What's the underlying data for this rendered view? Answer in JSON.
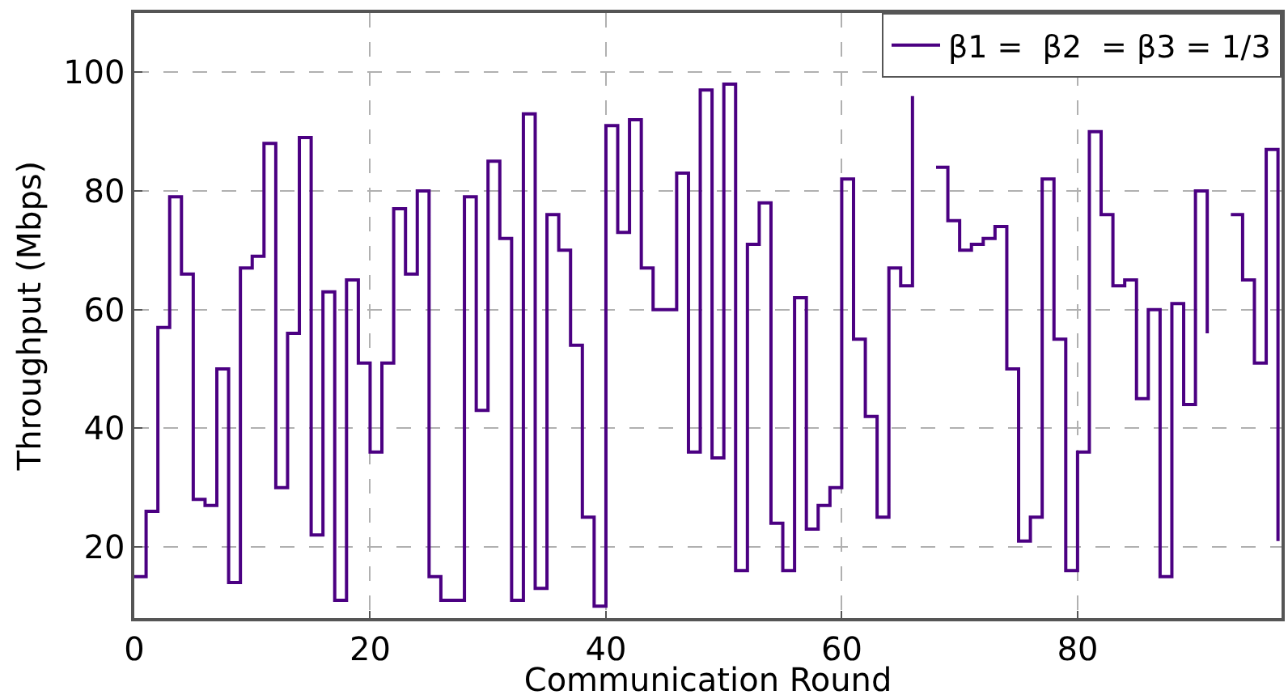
{
  "chart_data": {
    "type": "step",
    "xlabel": "Communication Round",
    "ylabel": "Throughput (Mbps)",
    "x": [
      0,
      1,
      2,
      3,
      4,
      5,
      6,
      7,
      8,
      9,
      10,
      11,
      12,
      13,
      14,
      15,
      16,
      17,
      18,
      19,
      20,
      21,
      22,
      23,
      24,
      25,
      26,
      27,
      28,
      29,
      30,
      31,
      32,
      33,
      34,
      35,
      36,
      37,
      38,
      39,
      40,
      41,
      42,
      43,
      44,
      45,
      46,
      47,
      48,
      49,
      50,
      51,
      52,
      53,
      54,
      55,
      56,
      57,
      58,
      59,
      60,
      61,
      62,
      63,
      64,
      65,
      66,
      67,
      68,
      69,
      70,
      71,
      72,
      73,
      74,
      75,
      76,
      77,
      78,
      79,
      80,
      81,
      82,
      83,
      84,
      85,
      86,
      87,
      88,
      89,
      90,
      91,
      92,
      93,
      94,
      95,
      96,
      97
    ],
    "series": [
      {
        "name": "β1 =  β2  = β3 = 1/3",
        "color": "#4b0082",
        "values": [
          15,
          26,
          57,
          79,
          66,
          28,
          27,
          50,
          14,
          67,
          69,
          88,
          30,
          56,
          89,
          22,
          63,
          11,
          65,
          51,
          36,
          51,
          77,
          66,
          80,
          15,
          11,
          11,
          79,
          43,
          85,
          72,
          11,
          93,
          13,
          76,
          70,
          54,
          25,
          10,
          91,
          73,
          92,
          67,
          60,
          60,
          83,
          36,
          97,
          35,
          98,
          16,
          71,
          78,
          24,
          16,
          62,
          23,
          27,
          30,
          82,
          55,
          42,
          25,
          67,
          64,
          96,
          null,
          84,
          75,
          70,
          71,
          72,
          74,
          50,
          21,
          25,
          82,
          55,
          16,
          36,
          90,
          76,
          64,
          65,
          45,
          60,
          15,
          61,
          44,
          80,
          56,
          null,
          76,
          65,
          51,
          87,
          21
        ]
      }
    ],
    "xlim": [
      0,
      97.3
    ],
    "ylim": [
      8,
      110
    ],
    "xticks": [
      0,
      20,
      40,
      60,
      80
    ],
    "yticks": [
      20,
      40,
      60,
      80,
      100
    ],
    "grid": true,
    "legend": "top right",
    "marker": "none",
    "line_style": "solid"
  }
}
